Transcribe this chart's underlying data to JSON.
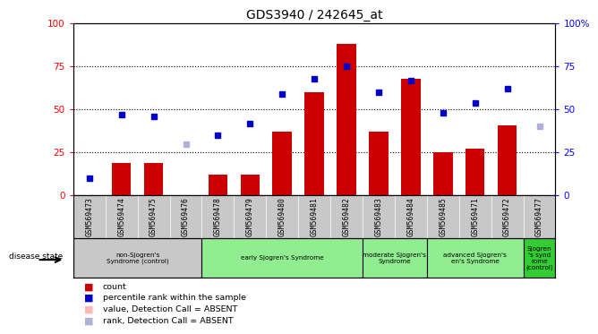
{
  "title": "GDS3940 / 242645_at",
  "samples": [
    "GSM569473",
    "GSM569474",
    "GSM569475",
    "GSM569476",
    "GSM569478",
    "GSM569479",
    "GSM569480",
    "GSM569481",
    "GSM569482",
    "GSM569483",
    "GSM569484",
    "GSM569485",
    "GSM569471",
    "GSM569472",
    "GSM569477"
  ],
  "count_values": [
    0,
    19,
    19,
    0,
    12,
    12,
    37,
    60,
    88,
    37,
    68,
    25,
    27,
    41,
    0
  ],
  "count_absent": [
    false,
    false,
    false,
    true,
    false,
    false,
    false,
    false,
    false,
    false,
    false,
    false,
    false,
    false,
    true
  ],
  "rank_values": [
    10,
    47,
    46,
    30,
    35,
    42,
    59,
    68,
    75,
    60,
    67,
    48,
    54,
    62,
    40
  ],
  "rank_absent": [
    false,
    false,
    false,
    true,
    false,
    false,
    false,
    false,
    false,
    false,
    false,
    false,
    false,
    false,
    true
  ],
  "groups": [
    {
      "label": "non-Sjogren's\nSyndrome (control)",
      "start": 0,
      "end": 3,
      "color": "#c8c8c8"
    },
    {
      "label": "early Sjogren's Syndrome",
      "start": 4,
      "end": 8,
      "color": "#90ee90"
    },
    {
      "label": "moderate Sjogren's\nSyndrome",
      "start": 9,
      "end": 10,
      "color": "#90ee90"
    },
    {
      "label": "advanced Sjogren's\nen's Syndrome",
      "start": 11,
      "end": 13,
      "color": "#90ee90"
    },
    {
      "label": "Sjogren\n's synd\nrome\n(control)",
      "start": 14,
      "end": 14,
      "color": "#32cd32"
    }
  ],
  "bar_color_present": "#cc0000",
  "bar_color_absent": "#ffb6b6",
  "dot_color_present": "#0000cc",
  "dot_color_absent": "#b0b0d8",
  "ylim": [
    0,
    100
  ],
  "yticks_left": [
    0,
    25,
    50,
    75,
    100
  ],
  "yticks_right_labels": [
    "0",
    "25",
    "50",
    "75",
    "100%"
  ],
  "bg_color": "#c8c8c8",
  "plot_bg": "#ffffff"
}
